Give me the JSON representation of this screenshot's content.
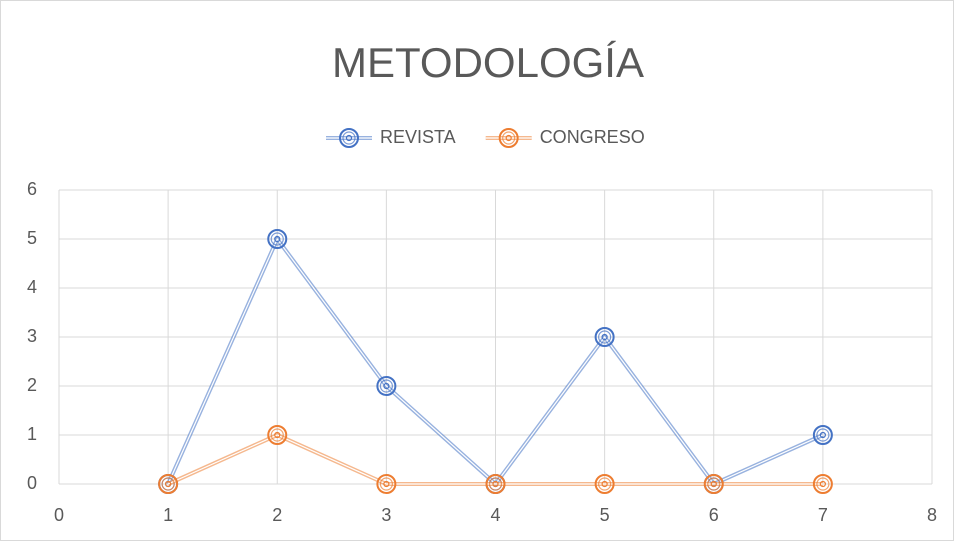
{
  "chart_data": {
    "type": "line",
    "title": "METODOLOGÍA",
    "x": [
      1,
      2,
      3,
      4,
      5,
      6,
      7
    ],
    "series": [
      {
        "name": "REVISTA",
        "color": "#4472c4",
        "values": [
          0,
          5,
          2,
          0,
          3,
          0,
          1
        ]
      },
      {
        "name": "CONGRESO",
        "color": "#ed7d31",
        "values": [
          0,
          1,
          0,
          0,
          0,
          0,
          0
        ]
      }
    ],
    "xlim": [
      0,
      8
    ],
    "xticks": [
      0,
      1,
      2,
      3,
      4,
      5,
      6,
      7,
      8
    ],
    "ylim": [
      0,
      6
    ],
    "yticks": [
      0,
      1,
      2,
      3,
      4,
      5,
      6
    ],
    "grid": true,
    "legend": "top"
  }
}
